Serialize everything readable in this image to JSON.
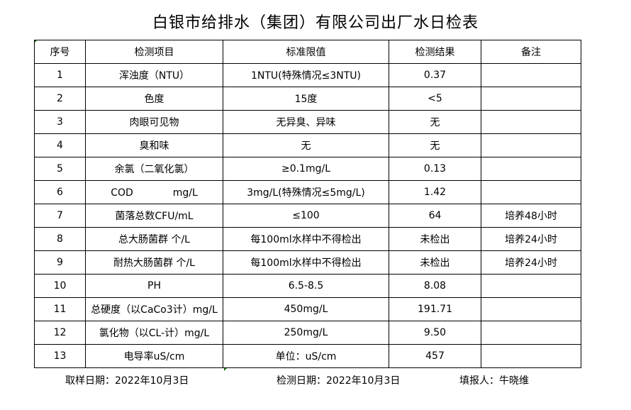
{
  "title": "白银市给排水（集团）有限公司出厂水日检表",
  "table": {
    "headers": [
      "序号",
      "检测项目",
      "标准限值",
      "检测结果",
      "备注"
    ],
    "rows": [
      [
        "1",
        "浑浊度（NTU）",
        "1NTU(特殊情况≤3NTU)",
        "0.37",
        ""
      ],
      [
        "2",
        "色度",
        "15度",
        "<5",
        ""
      ],
      [
        "3",
        "肉眼可见物",
        "无异臭、异味",
        "无",
        ""
      ],
      [
        "4",
        "臭和味",
        "无",
        "无",
        ""
      ],
      [
        "5",
        "余氯（二氧化氯）",
        "≥0.1mg/L",
        "0.13",
        ""
      ],
      [
        "6",
        "COD　　　　mg/L",
        "3mg/L(特殊情况≤5mg/L)",
        "1.42",
        ""
      ],
      [
        "7",
        "菌落总数CFU/mL",
        "≤100",
        "64",
        "培养48小时"
      ],
      [
        "8",
        "总大肠菌群 个/L",
        "每100ml水样中不得检出",
        "未检出",
        "培养24小时"
      ],
      [
        "9",
        "耐热大肠菌群 个/L",
        "每100ml水样中不得检出",
        "未检出",
        "培养24小时"
      ],
      [
        "10",
        "PH",
        "6.5-8.5",
        "8.08",
        ""
      ],
      [
        "11",
        "总硬度（以CaCo3计）mg/L",
        "450mg/L",
        "191.71",
        ""
      ],
      [
        "12",
        "氯化物（以CL-计）mg/L",
        "250mg/L",
        "9.50",
        ""
      ],
      [
        "13",
        "电导率uS/cm",
        "单位：uS/cm",
        "457",
        ""
      ]
    ]
  },
  "footer": {
    "sampling_date": "取样日期：2022年10月3日",
    "testing_date": "检测日期：2022年10月3日",
    "reporter": "填报人：牛晓维"
  }
}
